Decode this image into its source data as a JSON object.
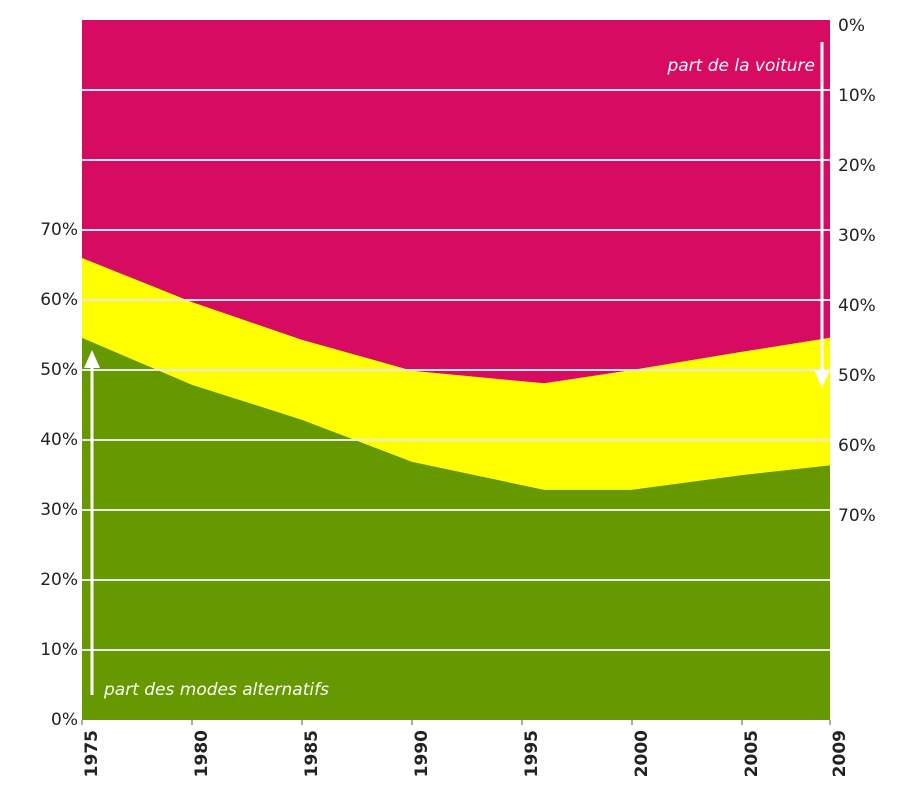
{
  "chart_data": {
    "type": "stacked-area",
    "x": [
      1975,
      1980,
      1985,
      1990,
      1996,
      2000,
      2005,
      2009
    ],
    "xlim": [
      1975,
      2009
    ],
    "xticks": [
      1975,
      1980,
      1985,
      1990,
      1995,
      2000,
      2005,
      2009
    ],
    "series": [
      {
        "color": "#669900",
        "values": [
          54.6,
          47.9,
          42.9,
          36.9,
          32.9,
          32.9,
          35,
          36.4
        ]
      },
      {
        "color": "#ffff00",
        "values": [
          11.4,
          11.8,
          11.4,
          13,
          15.2,
          17.1,
          17.6,
          18.2
        ]
      },
      {
        "color": "#d80b62",
        "values": [
          34,
          40.3,
          45.7,
          50.1,
          51.9,
          50,
          47.4,
          45.4
        ]
      }
    ],
    "ylim": [
      0,
      100
    ],
    "yticks": [
      {
        "value": 0,
        "label": "0%"
      },
      {
        "value": 10,
        "label": "10%"
      },
      {
        "value": 20,
        "label": "20%"
      },
      {
        "value": 30,
        "label": "30%"
      },
      {
        "value": 40,
        "label": "40%"
      },
      {
        "value": 50,
        "label": "50%"
      },
      {
        "value": 60,
        "label": "60%"
      },
      {
        "value": 70,
        "label": "70%"
      }
    ],
    "y2lim": [
      100,
      0
    ],
    "y2ticks": [
      {
        "value": 0,
        "label": "0%"
      },
      {
        "value": 10,
        "label": "10%"
      },
      {
        "value": 20,
        "label": "20%"
      },
      {
        "value": 30,
        "label": "30%"
      },
      {
        "value": 40,
        "label": "40%"
      },
      {
        "value": 50,
        "label": "50%"
      },
      {
        "value": 60,
        "label": "60%"
      },
      {
        "value": 70,
        "label": "70%"
      }
    ],
    "grid": true,
    "annotations": [
      "part de la voiture",
      "part des modes alternatifs"
    ]
  }
}
